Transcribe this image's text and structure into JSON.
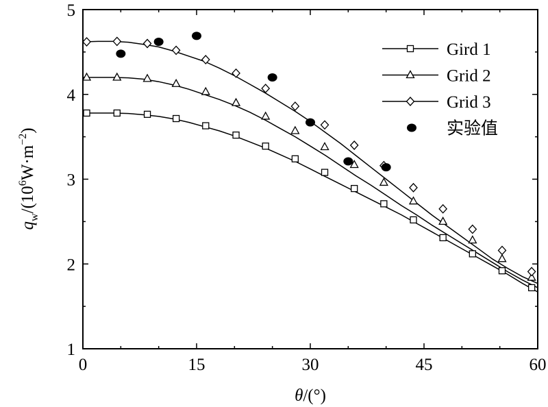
{
  "chart_data": {
    "type": "line",
    "xlabel": {
      "symbol": "θ",
      "rest": "/(°)"
    },
    "ylabel": {
      "symbol": "q",
      "subscript": "w",
      "rest1": "/(10",
      "sup1": "6",
      "rest2": "W·m",
      "sup2": "−2",
      "rest3": ")"
    },
    "xlim": [
      0,
      60
    ],
    "ylim": [
      1,
      5
    ],
    "xticks": [
      0,
      15,
      30,
      45,
      60
    ],
    "yticks": [
      1,
      2,
      3,
      4,
      5
    ],
    "grid": false,
    "legend_position": "top-right",
    "series": [
      {
        "name": "Gird 1",
        "marker": "square",
        "curve_x": [
          0,
          2,
          4,
          6,
          8,
          10,
          12,
          14,
          16,
          18,
          20,
          22,
          24,
          26,
          28,
          30,
          32,
          34,
          36,
          38,
          40,
          42,
          44,
          46,
          48,
          50,
          52,
          54,
          56,
          58,
          60
        ],
        "curve_y": [
          3.78,
          3.78,
          3.78,
          3.775,
          3.76,
          3.74,
          3.71,
          3.67,
          3.62,
          3.57,
          3.51,
          3.44,
          3.37,
          3.29,
          3.21,
          3.12,
          3.03,
          2.94,
          2.85,
          2.76,
          2.67,
          2.58,
          2.48,
          2.38,
          2.28,
          2.18,
          2.08,
          1.98,
          1.88,
          1.77,
          1.67
        ],
        "marker_x": [
          0.5,
          4.5,
          8.5,
          12.3,
          16.2,
          20.2,
          24.1,
          28,
          31.9,
          35.8,
          39.7,
          43.6,
          47.5,
          51.4,
          55.3,
          59.2
        ],
        "marker_y": [
          3.78,
          3.78,
          3.765,
          3.715,
          3.63,
          3.52,
          3.39,
          3.24,
          3.08,
          2.89,
          2.71,
          2.52,
          2.31,
          2.12,
          1.92,
          1.72
        ]
      },
      {
        "name": "Grid 2",
        "marker": "triangle",
        "curve_x": [
          0,
          2,
          4,
          6,
          8,
          10,
          12,
          14,
          16,
          18,
          20,
          22,
          24,
          26,
          28,
          30,
          32,
          34,
          36,
          38,
          40,
          42,
          44,
          46,
          48,
          50,
          52,
          54,
          56,
          58,
          60
        ],
        "curve_y": [
          4.2,
          4.2,
          4.2,
          4.195,
          4.18,
          4.15,
          4.11,
          4.06,
          4.0,
          3.94,
          3.87,
          3.79,
          3.7,
          3.6,
          3.5,
          3.39,
          3.28,
          3.16,
          3.04,
          2.93,
          2.81,
          2.69,
          2.58,
          2.46,
          2.35,
          2.24,
          2.13,
          2.02,
          1.91,
          1.81,
          1.72
        ],
        "marker_x": [
          0.5,
          4.5,
          8.5,
          12.3,
          16.2,
          20.2,
          24.1,
          28,
          31.9,
          35.8,
          39.7,
          43.6,
          47.5,
          51.4,
          55.3,
          59.2
        ],
        "marker_y": [
          4.2,
          4.2,
          4.185,
          4.125,
          4.03,
          3.9,
          3.74,
          3.57,
          3.38,
          3.17,
          2.96,
          2.74,
          2.5,
          2.28,
          2.06,
          1.84
        ]
      },
      {
        "name": "Grid 3",
        "marker": "diamond",
        "curve_x": [
          0,
          2,
          4,
          6,
          8,
          10,
          12,
          14,
          16,
          18,
          20,
          22,
          24,
          26,
          28,
          30,
          32,
          34,
          36,
          38,
          40,
          42,
          44,
          46,
          48,
          50,
          52,
          54,
          56,
          58,
          60
        ],
        "curve_y": [
          4.62,
          4.625,
          4.625,
          4.615,
          4.59,
          4.56,
          4.51,
          4.45,
          4.39,
          4.31,
          4.22,
          4.12,
          4.02,
          3.91,
          3.8,
          3.68,
          3.55,
          3.42,
          3.28,
          3.14,
          3.0,
          2.86,
          2.72,
          2.58,
          2.45,
          2.32,
          2.19,
          2.06,
          1.95,
          1.85,
          1.77
        ],
        "marker_x": [
          0.5,
          4.5,
          8.5,
          12.3,
          16.2,
          20.2,
          24.1,
          28,
          31.9,
          35.8,
          39.7,
          43.6,
          47.5,
          51.4,
          55.3,
          59.2
        ],
        "marker_y": [
          4.62,
          4.625,
          4.6,
          4.52,
          4.41,
          4.25,
          4.07,
          3.86,
          3.64,
          3.4,
          3.16,
          2.9,
          2.65,
          2.41,
          2.16,
          1.91
        ]
      },
      {
        "name": "实验值",
        "marker": "filled-ellipse",
        "x": [
          5,
          10,
          15,
          25,
          30,
          35,
          40
        ],
        "y": [
          4.48,
          4.62,
          4.69,
          4.2,
          3.67,
          3.21,
          3.14
        ]
      }
    ]
  }
}
